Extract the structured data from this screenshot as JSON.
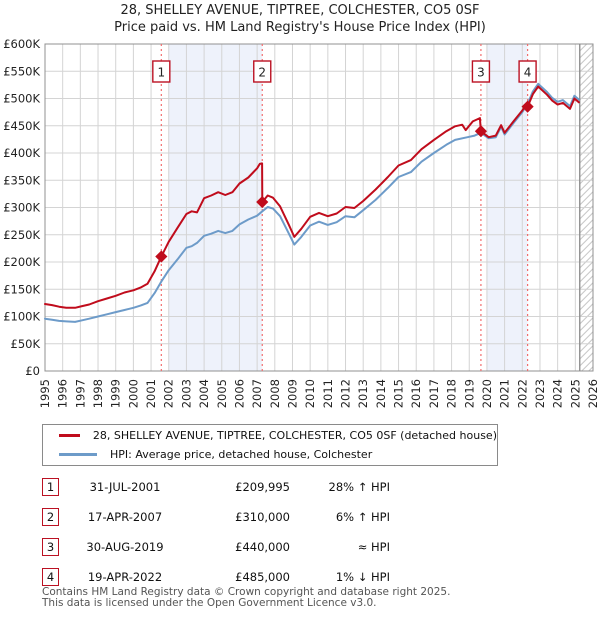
{
  "title": {
    "line1": "28, SHELLEY AVENUE, TIPTREE, COLCHESTER, CO5 0SF",
    "line2": "Price paid vs. HM Land Registry's House Price Index (HPI)"
  },
  "legend": [
    {
      "label": "28, SHELLEY AVENUE, TIPTREE, COLCHESTER, CO5 0SF (detached house)",
      "color": "#c00c1c"
    },
    {
      "label": "HPI: Average price, detached house, Colchester",
      "color": "#6d9bc9"
    }
  ],
  "sales": [
    {
      "n": "1",
      "date": "31-JUL-2001",
      "price": "£209,995",
      "hpi": "28% ↑ HPI",
      "year": 2001.58,
      "value": 210
    },
    {
      "n": "2",
      "date": "17-APR-2007",
      "price": "£310,000",
      "hpi": "6% ↑ HPI",
      "year": 2007.29,
      "value": 310
    },
    {
      "n": "3",
      "date": "30-AUG-2019",
      "price": "£440,000",
      "hpi": "≈ HPI",
      "year": 2019.66,
      "value": 440
    },
    {
      "n": "4",
      "date": "19-APR-2022",
      "price": "£485,000",
      "hpi": "1% ↓ HPI",
      "year": 2022.3,
      "value": 485
    }
  ],
  "footer": {
    "line1": "Contains HM Land Registry data © Crown copyright and database right 2025.",
    "line2": "This data is licensed under the Open Government Licence v3.0."
  },
  "colors": {
    "property_line": "#c00c1c",
    "hpi_line": "#6d9bc9",
    "sale_dotted_line": "#f26d6d",
    "ownership_shade": "#eef2fb",
    "grid": "#d4d4d4",
    "frame": "#909090",
    "hatch": "#c8c8c8",
    "badge_border": "#bb1122"
  },
  "chart_data": {
    "type": "line",
    "title": "28, SHELLEY AVENUE, TIPTREE, COLCHESTER, CO5 0SF — Price paid vs. HM Land Registry's House Price Index (HPI)",
    "x_axis": {
      "min": 1995,
      "max": 2026,
      "tick_labels": [
        "1995",
        "1996",
        "1997",
        "1998",
        "1999",
        "2000",
        "2001",
        "2002",
        "2003",
        "2004",
        "2005",
        "2006",
        "2007",
        "2008",
        "2009",
        "2010",
        "2011",
        "2012",
        "2013",
        "2014",
        "2015",
        "2016",
        "2017",
        "2018",
        "2019",
        "2020",
        "2021",
        "2022",
        "2023",
        "2024",
        "2025",
        "2026"
      ]
    },
    "y_axis": {
      "min": 0,
      "max": 600,
      "unit": "£K",
      "tick_step": 50,
      "tick_labels": [
        "£0",
        "£50K",
        "£100K",
        "£150K",
        "£200K",
        "£250K",
        "£300K",
        "£350K",
        "£400K",
        "£450K",
        "£500K",
        "£550K",
        "£600K"
      ]
    },
    "grid": true,
    "legend_position": "bottom",
    "ownership_shading": [
      [
        2002.0,
        2007.29
      ],
      [
        2020.0,
        2022.3
      ]
    ],
    "future_hatch": [
      2025.25,
      2026
    ],
    "sale_events": [
      {
        "n": "1",
        "year": 2001.58,
        "value": 210
      },
      {
        "n": "2",
        "year": 2007.29,
        "value": 310
      },
      {
        "n": "3",
        "year": 2019.66,
        "value": 440
      },
      {
        "n": "4",
        "year": 2022.3,
        "value": 485
      }
    ],
    "series": [
      {
        "name": "28, SHELLEY AVENUE, TIPTREE, COLCHESTER, CO5 0SF (detached house)",
        "color": "#c00c1c",
        "points": [
          [
            1995.0,
            123
          ],
          [
            1995.4,
            121
          ],
          [
            1995.8,
            118
          ],
          [
            1996.2,
            116
          ],
          [
            1996.7,
            116
          ],
          [
            1997.1,
            119
          ],
          [
            1997.5,
            122
          ],
          [
            1998.0,
            128
          ],
          [
            1998.5,
            133
          ],
          [
            1999.0,
            138
          ],
          [
            1999.5,
            144
          ],
          [
            2000.0,
            148
          ],
          [
            2000.4,
            153
          ],
          [
            2000.8,
            160
          ],
          [
            2001.2,
            183
          ],
          [
            2001.58,
            210
          ],
          [
            2002.0,
            237
          ],
          [
            2002.5,
            263
          ],
          [
            2003.0,
            288
          ],
          [
            2003.3,
            293
          ],
          [
            2003.6,
            291
          ],
          [
            2004.0,
            317
          ],
          [
            2004.4,
            322
          ],
          [
            2004.8,
            328
          ],
          [
            2005.2,
            323
          ],
          [
            2005.6,
            328
          ],
          [
            2006.0,
            344
          ],
          [
            2006.5,
            355
          ],
          [
            2007.0,
            372
          ],
          [
            2007.15,
            380
          ],
          [
            2007.28,
            381
          ],
          [
            2007.29,
            310
          ],
          [
            2007.6,
            322
          ],
          [
            2007.9,
            318
          ],
          [
            2008.3,
            302
          ],
          [
            2008.8,
            268
          ],
          [
            2009.1,
            246
          ],
          [
            2009.5,
            261
          ],
          [
            2010.0,
            283
          ],
          [
            2010.5,
            290
          ],
          [
            2011.0,
            284
          ],
          [
            2011.5,
            289
          ],
          [
            2012.0,
            301
          ],
          [
            2012.5,
            299
          ],
          [
            2013.0,
            312
          ],
          [
            2013.7,
            333
          ],
          [
            2014.4,
            356
          ],
          [
            2015.0,
            377
          ],
          [
            2015.7,
            387
          ],
          [
            2016.3,
            407
          ],
          [
            2017.0,
            424
          ],
          [
            2017.7,
            440
          ],
          [
            2018.2,
            449
          ],
          [
            2018.6,
            452
          ],
          [
            2018.8,
            442
          ],
          [
            2019.2,
            458
          ],
          [
            2019.6,
            464
          ],
          [
            2019.66,
            440
          ],
          [
            2020.1,
            429
          ],
          [
            2020.5,
            432
          ],
          [
            2020.8,
            451
          ],
          [
            2021.0,
            437
          ],
          [
            2021.5,
            458
          ],
          [
            2022.0,
            478
          ],
          [
            2022.28,
            492
          ],
          [
            2022.3,
            485
          ],
          [
            2022.6,
            508
          ],
          [
            2022.9,
            522
          ],
          [
            2023.1,
            516
          ],
          [
            2023.4,
            507
          ],
          [
            2023.7,
            496
          ],
          [
            2024.0,
            489
          ],
          [
            2024.3,
            492
          ],
          [
            2024.7,
            481
          ],
          [
            2024.95,
            500
          ],
          [
            2025.2,
            493
          ]
        ]
      },
      {
        "name": "HPI: Average price, detached house, Colchester",
        "color": "#6d9bc9",
        "points": [
          [
            1995.0,
            96
          ],
          [
            1995.4,
            94
          ],
          [
            1995.8,
            92
          ],
          [
            1996.2,
            91
          ],
          [
            1996.7,
            90
          ],
          [
            1997.1,
            93
          ],
          [
            1997.5,
            96
          ],
          [
            1998.0,
            100
          ],
          [
            1998.5,
            104
          ],
          [
            1999.0,
            108
          ],
          [
            1999.5,
            112
          ],
          [
            2000.0,
            116
          ],
          [
            2000.4,
            120
          ],
          [
            2000.8,
            125
          ],
          [
            2001.2,
            143
          ],
          [
            2001.58,
            164
          ],
          [
            2002.0,
            185
          ],
          [
            2002.5,
            205
          ],
          [
            2003.0,
            226
          ],
          [
            2003.3,
            229
          ],
          [
            2003.6,
            235
          ],
          [
            2004.0,
            248
          ],
          [
            2004.4,
            252
          ],
          [
            2004.8,
            257
          ],
          [
            2005.2,
            253
          ],
          [
            2005.6,
            257
          ],
          [
            2006.0,
            269
          ],
          [
            2006.5,
            278
          ],
          [
            2007.0,
            285
          ],
          [
            2007.29,
            293
          ],
          [
            2007.6,
            301
          ],
          [
            2007.9,
            298
          ],
          [
            2008.3,
            284
          ],
          [
            2008.8,
            252
          ],
          [
            2009.1,
            232
          ],
          [
            2009.5,
            246
          ],
          [
            2010.0,
            267
          ],
          [
            2010.5,
            274
          ],
          [
            2011.0,
            268
          ],
          [
            2011.5,
            273
          ],
          [
            2012.0,
            284
          ],
          [
            2012.5,
            282
          ],
          [
            2013.0,
            295
          ],
          [
            2013.7,
            314
          ],
          [
            2014.4,
            336
          ],
          [
            2015.0,
            356
          ],
          [
            2015.7,
            365
          ],
          [
            2016.3,
            384
          ],
          [
            2017.0,
            400
          ],
          [
            2017.7,
            415
          ],
          [
            2018.2,
            424
          ],
          [
            2018.9,
            429
          ],
          [
            2019.3,
            432
          ],
          [
            2019.66,
            437
          ],
          [
            2020.1,
            427
          ],
          [
            2020.5,
            429
          ],
          [
            2020.8,
            448
          ],
          [
            2021.0,
            434
          ],
          [
            2021.5,
            455
          ],
          [
            2022.0,
            475
          ],
          [
            2022.3,
            490
          ],
          [
            2022.6,
            513
          ],
          [
            2022.9,
            527
          ],
          [
            2023.1,
            521
          ],
          [
            2023.4,
            512
          ],
          [
            2023.7,
            501
          ],
          [
            2024.0,
            494
          ],
          [
            2024.3,
            497
          ],
          [
            2024.7,
            486
          ],
          [
            2024.95,
            505
          ],
          [
            2025.2,
            498
          ]
        ]
      }
    ]
  }
}
